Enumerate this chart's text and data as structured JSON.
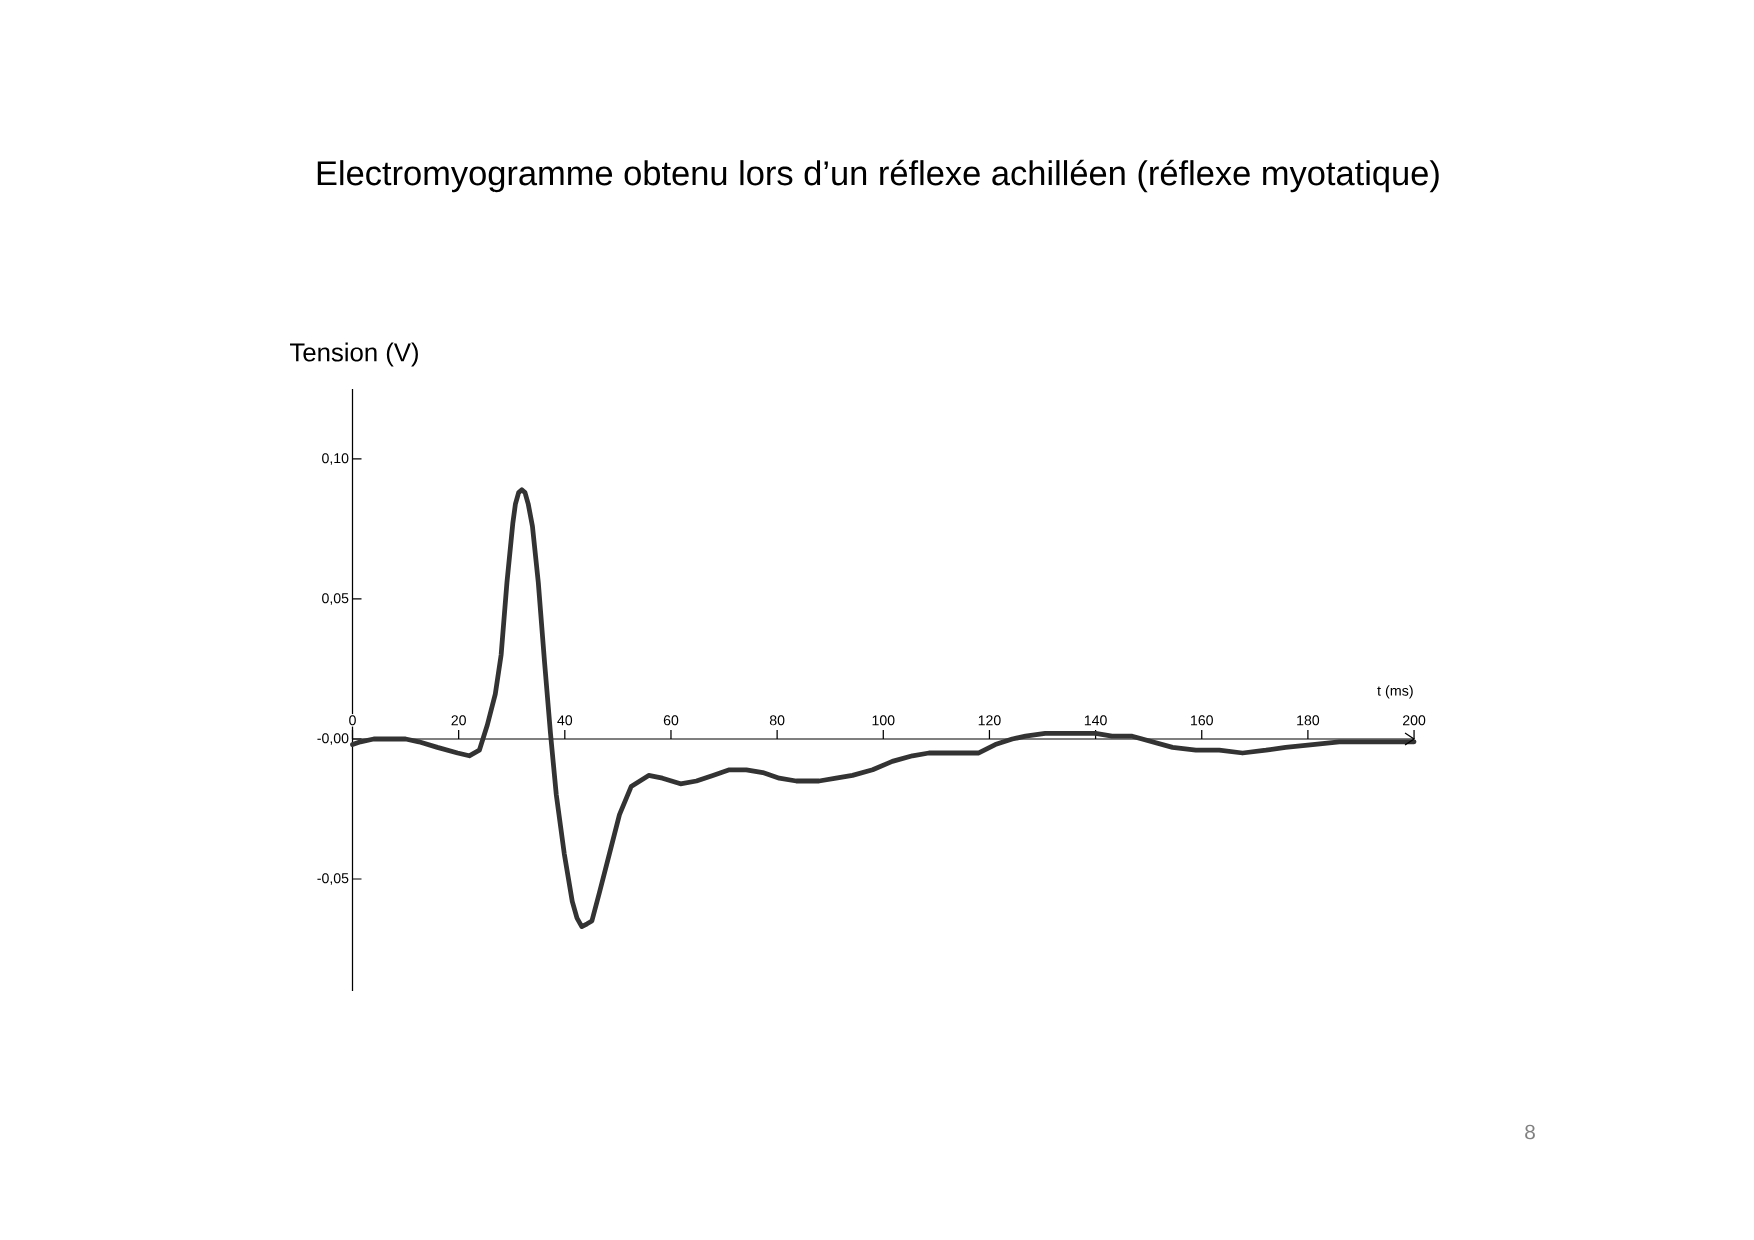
{
  "chart_data": {
    "type": "line",
    "title": "Electromyogramme obtenu lors d’un réflexe achilléen (réflexe myotatique)",
    "xlabel": "t (ms)",
    "ylabel": "Tension (V)",
    "x": [
      0,
      1.5,
      4,
      8,
      10,
      12.5,
      16,
      19.8,
      22,
      23.9,
      25.4,
      26.9,
      28,
      29.1,
      30.2,
      30.7,
      31.3,
      31.9,
      32.5,
      33.1,
      33.9,
      35,
      36.2,
      37.3,
      38.4,
      39.9,
      41.4,
      42.3,
      43.2,
      44.2,
      45.1,
      46.5,
      48.4,
      50.3,
      52.5,
      55.8,
      58.4,
      61.8,
      64.8,
      67.9,
      71,
      74.2,
      77.3,
      80.4,
      83.6,
      87.9,
      91.1,
      94.2,
      98,
      101.7,
      105.5,
      108.6,
      111.7,
      115.5,
      118,
      121.1,
      124.3,
      126.8,
      130.5,
      133.7,
      136.8,
      140,
      143.1,
      146.9,
      150.7,
      154.5,
      158.9,
      163.3,
      167.7,
      172.1,
      175.8,
      180.9,
      185.9,
      192.2,
      200
    ],
    "series": [
      {
        "color": "#333333",
        "values": [
          -0.002,
          -0.001,
          0.0,
          0.0,
          0.0,
          -0.001,
          -0.003,
          -0.005,
          -0.006,
          -0.004,
          0.005,
          0.016,
          0.03,
          0.056,
          0.077,
          0.084,
          0.088,
          0.089,
          0.088,
          0.084,
          0.076,
          0.056,
          0.027,
          0.002,
          -0.02,
          -0.041,
          -0.058,
          -0.064,
          -0.067,
          -0.066,
          -0.065,
          -0.055,
          -0.041,
          -0.027,
          -0.017,
          -0.013,
          -0.014,
          -0.016,
          -0.015,
          -0.013,
          -0.011,
          -0.011,
          -0.012,
          -0.014,
          -0.015,
          -0.015,
          -0.014,
          -0.013,
          -0.011,
          -0.008,
          -0.006,
          -0.005,
          -0.005,
          -0.005,
          -0.005,
          -0.002,
          0.0,
          0.001,
          0.002,
          0.002,
          0.002,
          0.002,
          0.001,
          0.001,
          -0.001,
          -0.003,
          -0.004,
          -0.004,
          -0.005,
          -0.004,
          -0.003,
          -0.002,
          -0.001,
          -0.001,
          -0.001
        ]
      }
    ],
    "xlim": [
      0,
      200
    ],
    "ylim": [
      -0.09,
      0.125
    ],
    "xticks": [
      0,
      20,
      40,
      60,
      80,
      100,
      120,
      140,
      160,
      180,
      200
    ],
    "yticks": [
      {
        "value": -0.05,
        "label": "-0,05"
      },
      {
        "value": 0,
        "label": "-0,00"
      },
      {
        "value": 0.05,
        "label": "0,05"
      },
      {
        "value": 0.1,
        "label": "0,10"
      }
    ],
    "marker": "none",
    "line_style": "solid",
    "annotations": [
      "8"
    ]
  }
}
